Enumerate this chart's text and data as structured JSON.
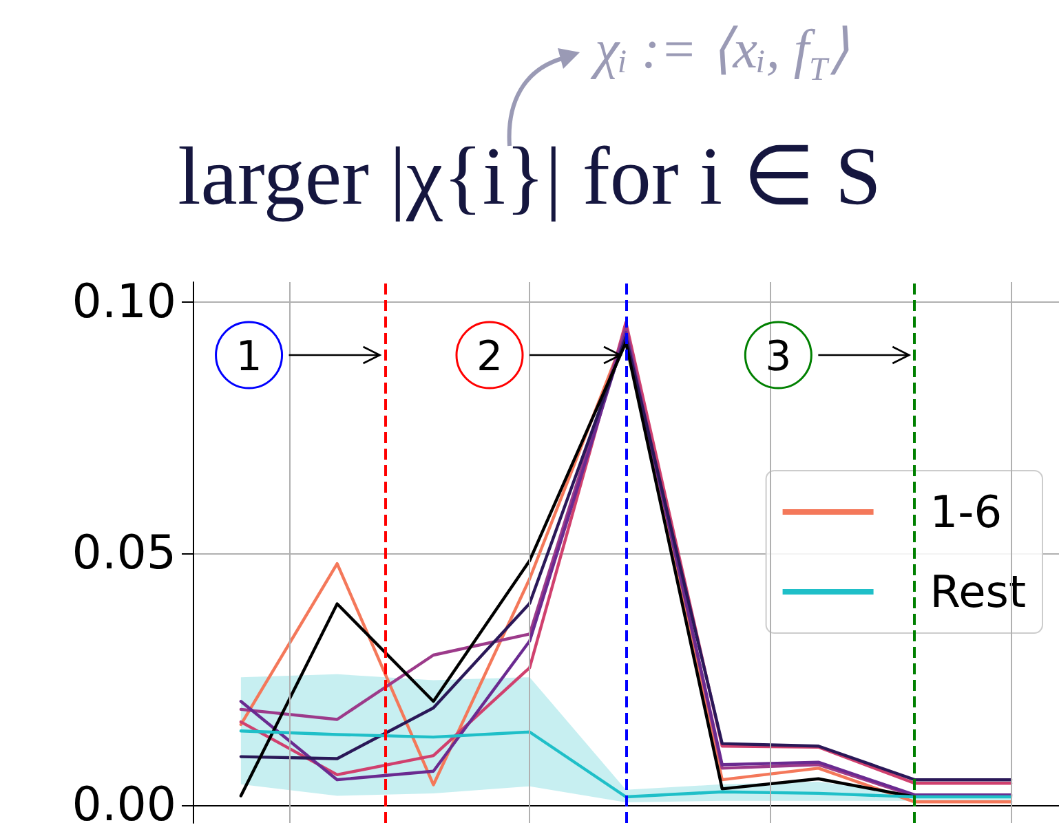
{
  "chart_data": {
    "type": "line",
    "title": "larger |χ{i}| for i ∈ S",
    "subtitle": "χᵢ := ⟨xᵢ, f$_{T}$⟩",
    "categories": [
      null,
      null,
      null,
      null,
      null,
      null,
      null,
      null,
      null
    ],
    "ylim": [
      -0.0036,
      0.104
    ],
    "yticks": [
      {
        "value": 0,
        "label": "0.00"
      },
      {
        "value": 0.05,
        "label": "0.05"
      },
      {
        "value": 0.1,
        "label": "0.10"
      }
    ],
    "tick_labels": "y",
    "grid": true,
    "legend": "right",
    "line_style": "solid",
    "annotations": [
      "1",
      "2",
      "3"
    ],
    "series": [
      {
        "name": "1-6",
        "color": "#f4785a",
        "values": [
          0.016,
          0.048,
          0.004,
          0.045,
          0.094,
          0.005,
          0.0073,
          0.0006,
          0.0006
        ]
      },
      {
        "color": "#d0406e",
        "values": [
          0.0165,
          0.006,
          0.0098,
          0.0273,
          0.096,
          0.0117,
          0.0115,
          0.0043,
          0.0043
        ]
      },
      {
        "color": "#9c3a8a",
        "values": [
          0.019,
          0.017,
          0.0298,
          0.034,
          0.095,
          0.0073,
          0.008,
          0.0018,
          0.0018
        ]
      },
      {
        "color": "#6a2a90",
        "values": [
          0.0206,
          0.005,
          0.0067,
          0.0326,
          0.094,
          0.008,
          0.0085,
          0.002,
          0.002
        ]
      },
      {
        "color": "#2a1858",
        "values": [
          0.0096,
          0.0092,
          0.0193,
          0.0401,
          0.093,
          0.0122,
          0.0117,
          0.005,
          0.005
        ]
      },
      {
        "color": "#000000",
        "values": [
          0.0018,
          0.04,
          0.0206,
          0.0486,
          0.092,
          0.0032,
          0.0052,
          0.0016,
          null
        ]
      },
      {
        "name": "Rest",
        "color": "#1fbfc8",
        "values": [
          0.0147,
          0.014,
          0.0135,
          0.0145,
          0.0016,
          0.0026,
          0.0023,
          0.0016,
          0.0016
        ],
        "lower": [
          0.0041,
          0.0018,
          0.0023,
          0.0037,
          0.0005,
          0.0008,
          0.0008,
          0.0008,
          0.0008
        ],
        "upper": [
          0.0254,
          0.026,
          0.0248,
          0.0254,
          0.003,
          0.0041,
          0.0046,
          0.002,
          0.002
        ]
      }
    ]
  }
}
